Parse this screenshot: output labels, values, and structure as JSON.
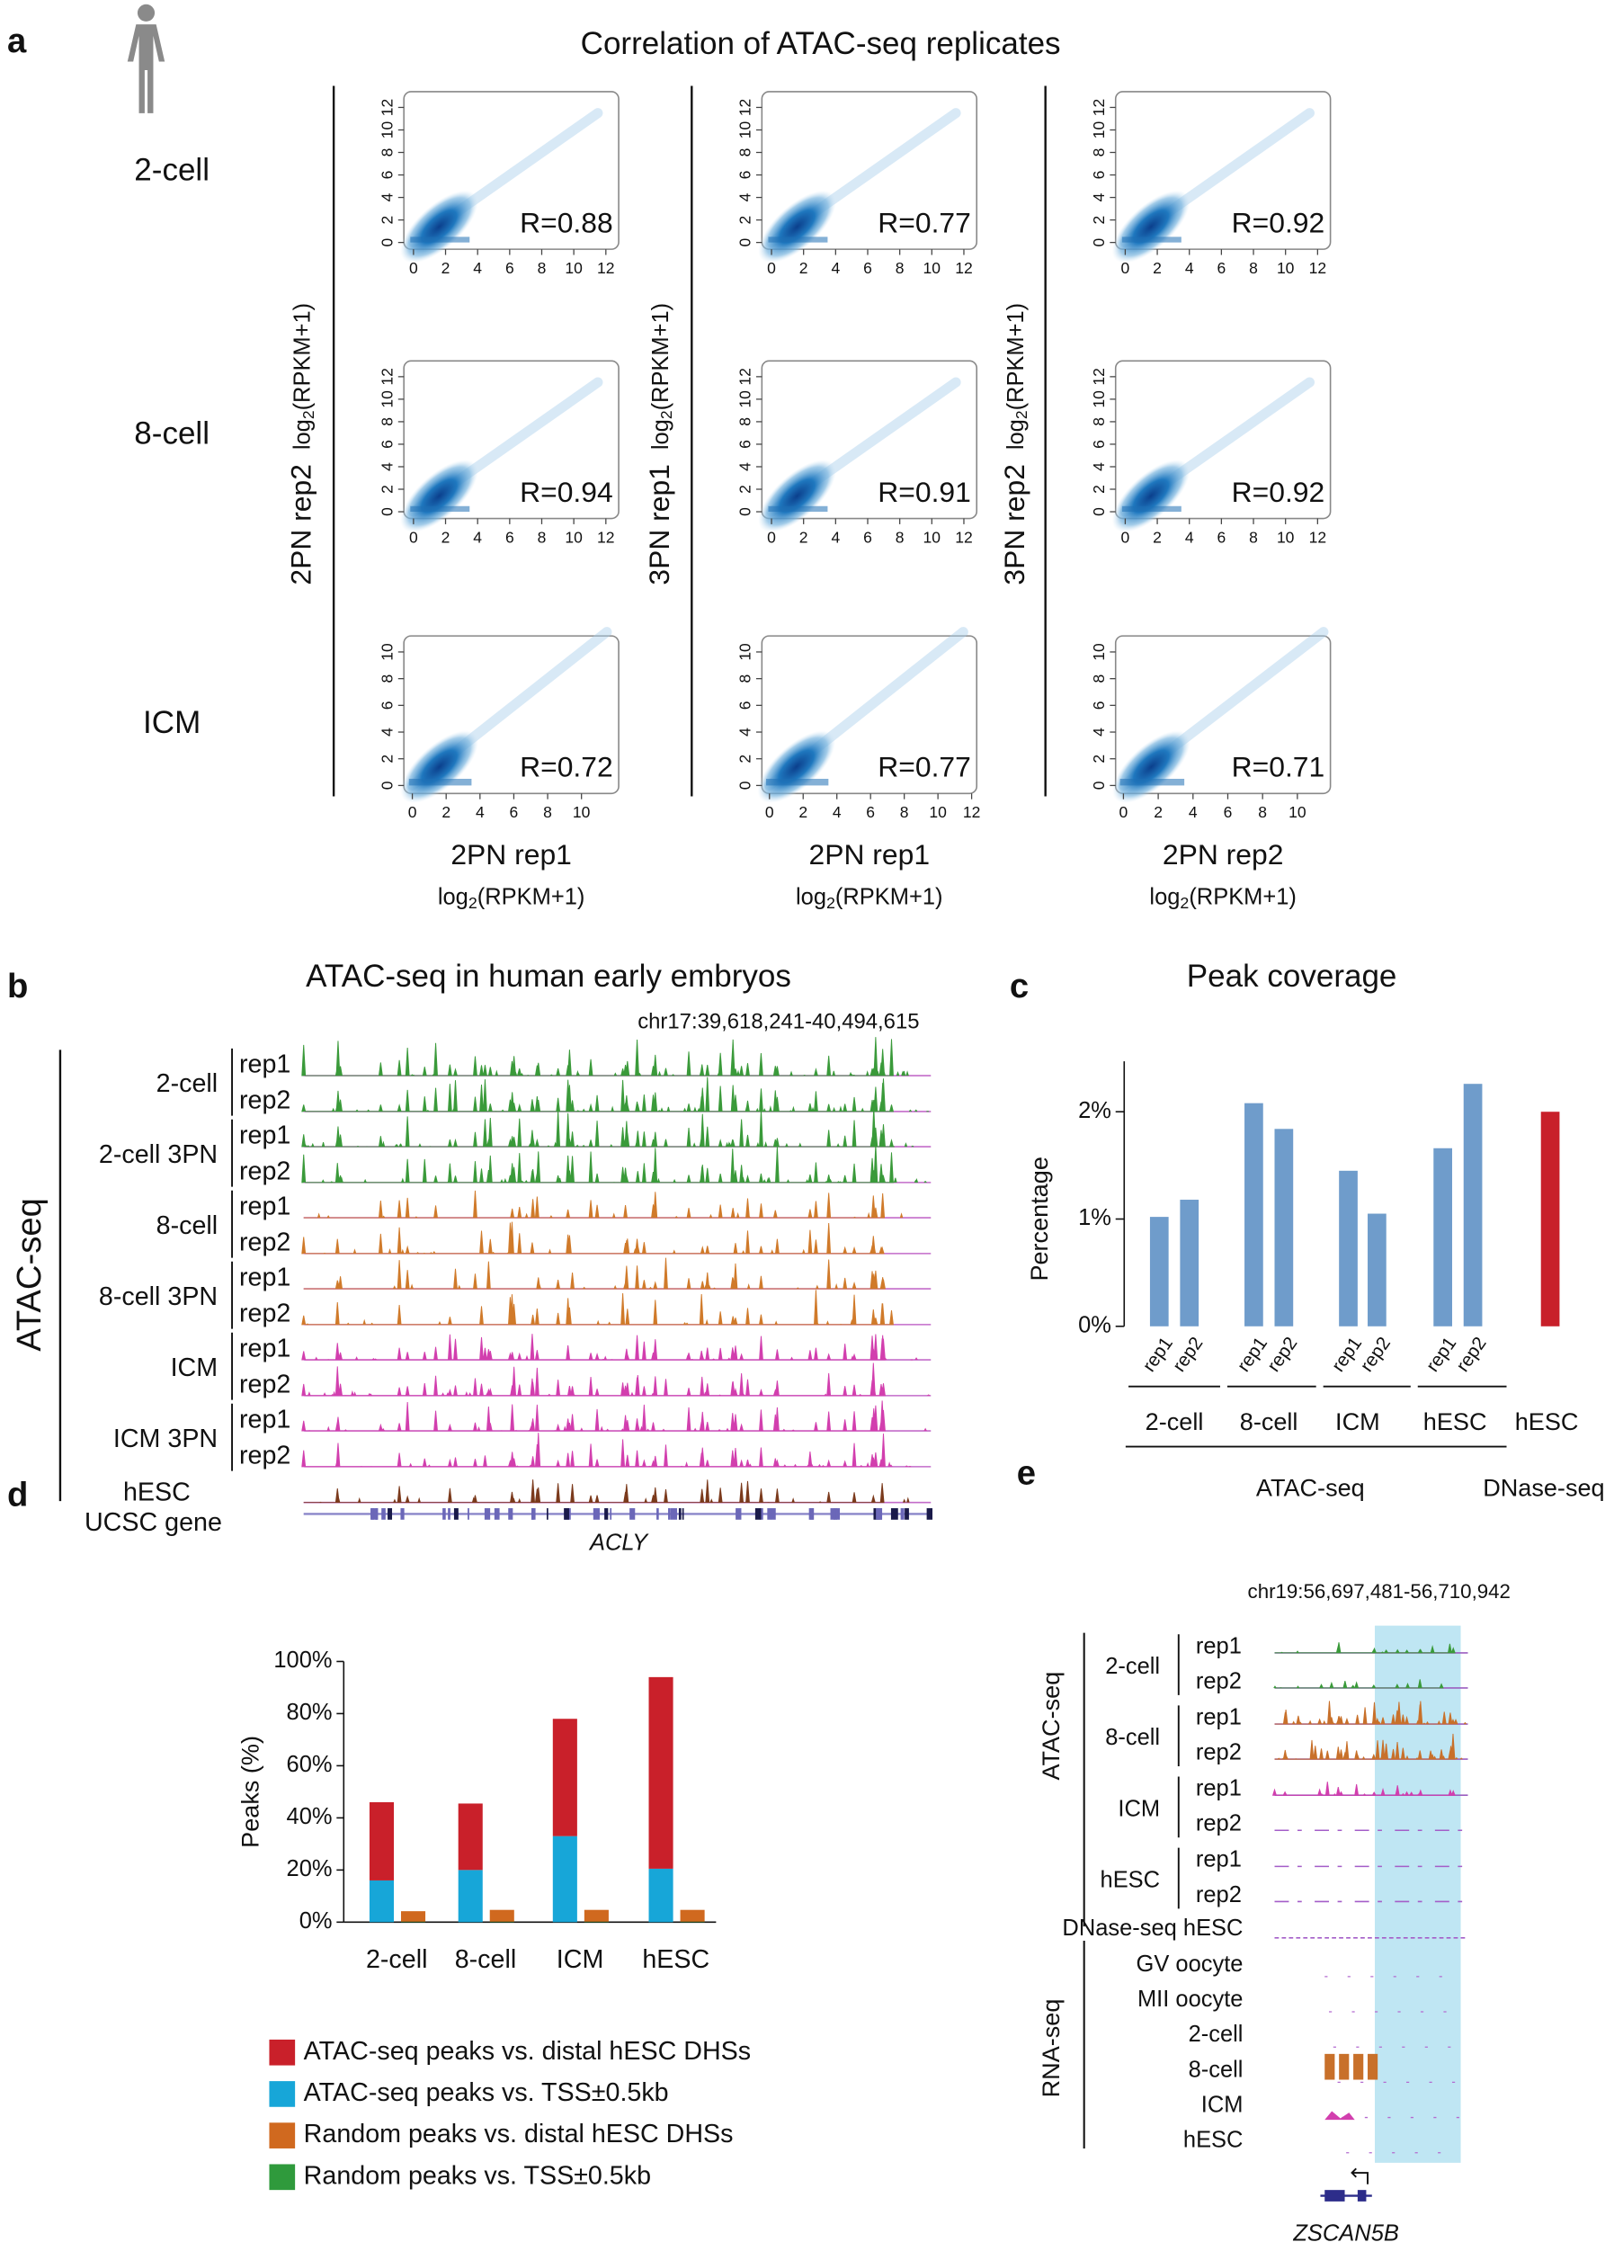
{
  "panel_labels": [
    "a",
    "b",
    "c",
    "d",
    "e"
  ],
  "panel_a": {
    "title": "Correlation of ATAC-seq replicates",
    "row_labels": [
      "2-cell",
      "8-cell",
      "ICM"
    ],
    "column_ylabels": [
      "2PN rep2",
      "3PN rep1",
      "3PN rep2"
    ],
    "column_xlabels": [
      "2PN rep1",
      "2PN rep1",
      "2PN rep2"
    ],
    "axis_unit": [
      "log",
      "2",
      "(RPKM+1)"
    ]
  },
  "chart_data": [
    {
      "type": "scatter",
      "annotation": "R=0.88",
      "xlim": [
        -0.6,
        12.8
      ],
      "ylim": [
        -0.6,
        13.4
      ],
      "xticks": [
        0,
        2,
        4,
        6,
        8,
        10,
        12
      ],
      "yticks": [
        0,
        2,
        4,
        6,
        8,
        10,
        12
      ]
    },
    {
      "type": "scatter",
      "annotation": "R=0.77",
      "xlim": [
        -0.6,
        12.8
      ],
      "ylim": [
        -0.6,
        13.4
      ],
      "xticks": [
        0,
        2,
        4,
        6,
        8,
        10,
        12
      ],
      "yticks": [
        0,
        2,
        4,
        6,
        8,
        10,
        12
      ]
    },
    {
      "type": "scatter",
      "annotation": "R=0.92",
      "xlim": [
        -0.6,
        12.8
      ],
      "ylim": [
        -0.6,
        13.4
      ],
      "xticks": [
        0,
        2,
        4,
        6,
        8,
        10,
        12
      ],
      "yticks": [
        0,
        2,
        4,
        6,
        8,
        10,
        12
      ]
    },
    {
      "type": "scatter",
      "annotation": "R=0.94",
      "xlim": [
        -0.6,
        12.8
      ],
      "ylim": [
        -0.6,
        13.4
      ],
      "xticks": [
        0,
        2,
        4,
        6,
        8,
        10,
        12
      ],
      "yticks": [
        0,
        2,
        4,
        6,
        8,
        10,
        12
      ]
    },
    {
      "type": "scatter",
      "annotation": "R=0.91",
      "xlim": [
        -0.6,
        12.8
      ],
      "ylim": [
        -0.6,
        13.4
      ],
      "xticks": [
        0,
        2,
        4,
        6,
        8,
        10,
        12
      ],
      "yticks": [
        0,
        2,
        4,
        6,
        8,
        10,
        12
      ]
    },
    {
      "type": "scatter",
      "annotation": "R=0.92",
      "xlim": [
        -0.6,
        12.8
      ],
      "ylim": [
        -0.6,
        13.4
      ],
      "xticks": [
        0,
        2,
        4,
        6,
        8,
        10,
        12
      ],
      "yticks": [
        0,
        2,
        4,
        6,
        8,
        10,
        12
      ]
    },
    {
      "type": "scatter",
      "annotation": "R=0.72",
      "xlim": [
        -0.5,
        12.2
      ],
      "ylim": [
        -0.6,
        11.2
      ],
      "xticks": [
        0,
        2,
        4,
        6,
        8,
        10
      ],
      "yticks": [
        0,
        2,
        4,
        6,
        8,
        10
      ]
    },
    {
      "type": "scatter",
      "annotation": "R=0.77",
      "xlim": [
        -0.45,
        12.3
      ],
      "ylim": [
        -0.6,
        11.2
      ],
      "xticks": [
        0,
        2,
        4,
        6,
        8,
        10,
        12
      ],
      "yticks": [
        0,
        2,
        4,
        6,
        8,
        10
      ]
    },
    {
      "type": "scatter",
      "annotation": "R=0.71",
      "xlim": [
        -0.45,
        11.9
      ],
      "ylim": [
        -0.6,
        11.2
      ],
      "xticks": [
        0,
        2,
        4,
        6,
        8,
        10
      ],
      "yticks": [
        0,
        2,
        4,
        6,
        8,
        10
      ]
    },
    {
      "type": "bar",
      "title": "Peak coverage",
      "ylabel": "Percentage",
      "categories": [
        "rep1",
        "rep2",
        "rep1",
        "rep2",
        "rep1",
        "rep2",
        "rep1",
        "rep2",
        null
      ],
      "groups": [
        "2-cell",
        "8-cell",
        "ICM",
        "hESC",
        "hESC"
      ],
      "assays": [
        "ATAC-seq",
        "DNase-seq"
      ],
      "values": [
        1.02,
        1.18,
        2.08,
        1.84,
        1.45,
        1.05,
        1.66,
        2.26,
        2.0
      ],
      "colors": [
        "#6f9ccb",
        "#6f9ccb",
        "#6f9ccb",
        "#6f9ccb",
        "#6f9ccb",
        "#6f9ccb",
        "#6f9ccb",
        "#6f9ccb",
        "#c8202a"
      ],
      "ylim": [
        0,
        2.47
      ],
      "yticks": [
        {
          "value": 0,
          "label": "0%"
        },
        {
          "value": 1,
          "label": "1%"
        },
        {
          "value": 2,
          "label": "2%"
        }
      ]
    },
    {
      "type": "stacked_bar",
      "ylabel": "Peaks (%)",
      "categories": [
        "2-cell",
        "8-cell",
        "ICM",
        "hESC"
      ],
      "series": [
        {
          "name": "ATAC-seq peaks vs. distal hESC DHSs",
          "color": "#c9202a",
          "stack": 0,
          "values": [
            30,
            25.5,
            45,
            73.5
          ]
        },
        {
          "name": "ATAC-seq peaks vs. TSS±0.5kb",
          "color": "#17a6d8",
          "stack": 0,
          "values": [
            16,
            20,
            33,
            20.5
          ]
        },
        {
          "name": "Random peaks vs. distal hESC DHSs",
          "color": "#d0691f",
          "stack": 1,
          "values": [
            4,
            4.5,
            4.5,
            4.5
          ]
        },
        {
          "name": "Random peaks vs. TSS±0.5kb",
          "color": "#2f9a3c",
          "stack": 1,
          "values": [
            0.2,
            0.2,
            0.2,
            0.2
          ]
        }
      ],
      "ylim": [
        0,
        100
      ],
      "yticks": [
        {
          "value": 0,
          "label": "0%"
        },
        {
          "value": 20,
          "label": "20%"
        },
        {
          "value": 40,
          "label": "40%"
        },
        {
          "value": 60,
          "label": "60%"
        },
        {
          "value": 80,
          "label": "80%"
        },
        {
          "value": 100,
          "label": "100%"
        }
      ]
    }
  ],
  "panel_b": {
    "title": "ATAC-seq in human early embryos",
    "region": "chr17:39,618,241-40,494,615",
    "section": "ATAC-seq",
    "groups": [
      "2-cell",
      "2-cell 3PN",
      "8-cell",
      "8-cell 3PN",
      "ICM",
      "ICM 3PN",
      "hESC"
    ],
    "replicates": [
      "rep1",
      "rep2"
    ],
    "gene_track": "UCSC gene",
    "gene": "ACLY"
  },
  "panel_e": {
    "region": "chr19:56,697,481-56,710,942",
    "sections": [
      "ATAC-seq",
      "RNA-seq"
    ],
    "atac_groups": [
      "2-cell",
      "8-cell",
      "ICM",
      "hESC"
    ],
    "replicates": [
      "rep1",
      "rep2"
    ],
    "dnase_track": "DNase-seq hESC",
    "rna_tracks": [
      "GV oocyte",
      "MII oocyte",
      "2-cell",
      "8-cell",
      "ICM",
      "hESC"
    ],
    "gene": "ZSCAN5B"
  }
}
